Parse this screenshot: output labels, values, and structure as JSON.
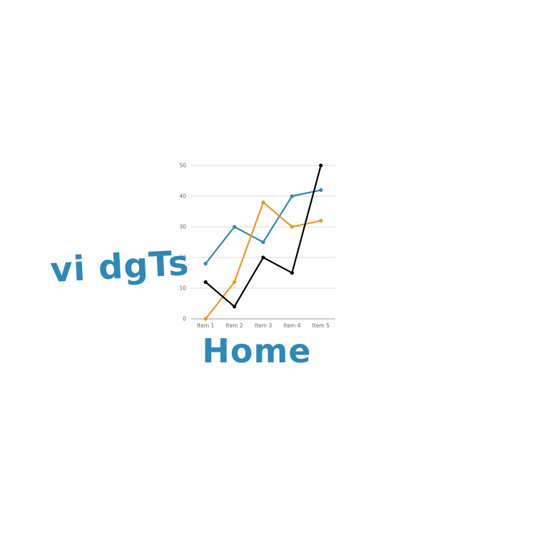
{
  "logo": {
    "word1": "vi dgTs",
    "word2": "Home",
    "color": "#2e88b8"
  },
  "chart_data": {
    "type": "line",
    "categories": [
      "Item 1",
      "Item 2",
      "Item 3",
      "Item 4",
      "Item 5"
    ],
    "series": [
      {
        "color": "#2e88b8",
        "values": [
          18,
          30,
          25,
          40,
          42
        ]
      },
      {
        "color": "#f0961e",
        "values": [
          0,
          12,
          38,
          30,
          32
        ]
      },
      {
        "color": "#000000",
        "values": [
          12,
          4,
          20,
          15,
          50
        ]
      }
    ],
    "y_ticks": [
      0,
      10,
      20,
      30,
      40,
      50
    ],
    "ylim": [
      0,
      50
    ],
    "grid": true,
    "legend": "none"
  }
}
